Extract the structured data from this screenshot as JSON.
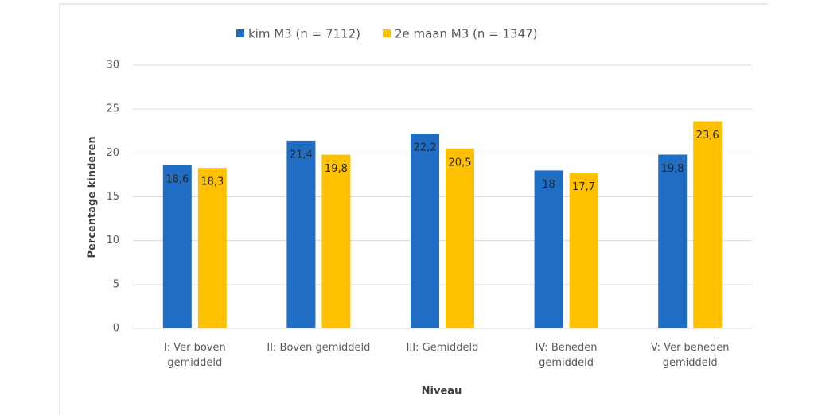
{
  "chart_data": {
    "type": "bar",
    "categories": [
      "I: Ver boven gemiddeld",
      "II: Boven gemiddeld",
      "III: Gemiddeld",
      "IV: Beneden gemiddeld",
      "V: Ver beneden gemiddeld"
    ],
    "series": [
      {
        "name": "kim M3 (n = 7112)",
        "color": "#1f6dc4",
        "values": [
          18.6,
          21.4,
          22.2,
          18,
          19.8
        ],
        "value_labels": [
          "18,6",
          "21,4",
          "22,2",
          "18",
          "19,8"
        ]
      },
      {
        "name": "2e maan M3 (n = 1347)",
        "color": "#ffc000",
        "values": [
          18.3,
          19.8,
          20.5,
          17.7,
          23.6
        ],
        "value_labels": [
          "18,3",
          "19,8",
          "20,5",
          "17,7",
          "23,6"
        ]
      }
    ],
    "xlabel": "Niveau",
    "ylabel": "Percentage kinderen",
    "ylim": [
      0,
      30
    ],
    "yticks": [
      0,
      5,
      10,
      15,
      20,
      25,
      30
    ],
    "grid": true,
    "legend": "top"
  }
}
